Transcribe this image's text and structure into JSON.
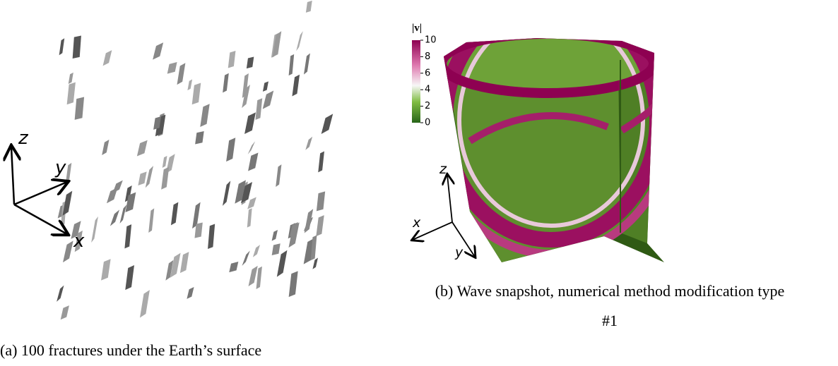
{
  "panel_a": {
    "axes": {
      "z": "z",
      "y": "y",
      "x": "x"
    },
    "caption": "(a) 100 fractures under the Earth’s surface"
  },
  "panel_b": {
    "axes": {
      "z": "z",
      "x": "x",
      "y": "y"
    },
    "colorbar": {
      "label": "|v|",
      "lim": [
        0,
        10
      ],
      "ticks": [
        0,
        2,
        4,
        6,
        8,
        10
      ]
    },
    "caption": "(b) Wave snapshot, numerical method modification type #1"
  }
}
